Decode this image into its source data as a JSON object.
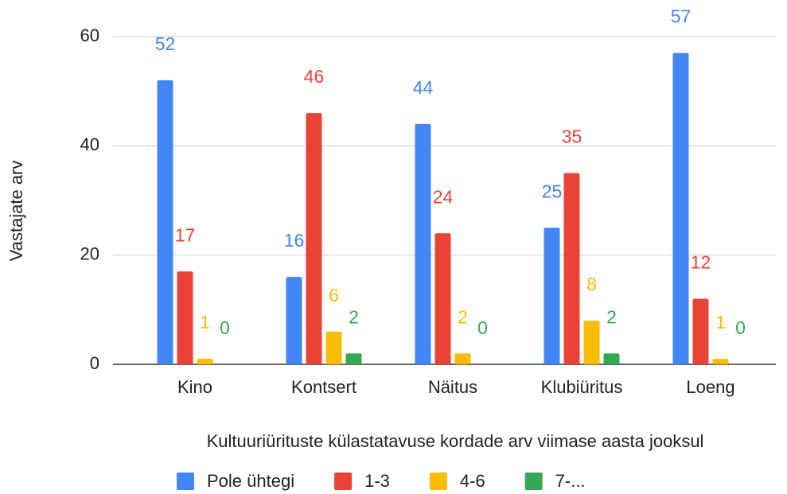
{
  "chart_data": {
    "type": "bar",
    "x_label": "Kultuuriürituste külastatavuse kordade arv viimase aasta jooksul",
    "y_label": "Vastajate arv",
    "categories": [
      "Kino",
      "Kontsert",
      "Näitus",
      "Klubiüritus",
      "Loeng"
    ],
    "series": [
      {
        "name": "Pole ühtegi",
        "color": "#4285f4",
        "values": [
          52,
          16,
          44,
          25,
          57
        ]
      },
      {
        "name": "1-3",
        "color": "#ea4335",
        "values": [
          17,
          46,
          24,
          35,
          12
        ]
      },
      {
        "name": "4-6",
        "color": "#fbbc04",
        "values": [
          1,
          6,
          2,
          8,
          1
        ]
      },
      {
        "name": "7-...",
        "color": "#34a853",
        "values": [
          0,
          2,
          0,
          2,
          0
        ]
      }
    ],
    "ylim": [
      0,
      60
    ],
    "yticks": [
      0,
      20,
      40,
      60
    ],
    "grid": true,
    "legend": "bottom"
  }
}
